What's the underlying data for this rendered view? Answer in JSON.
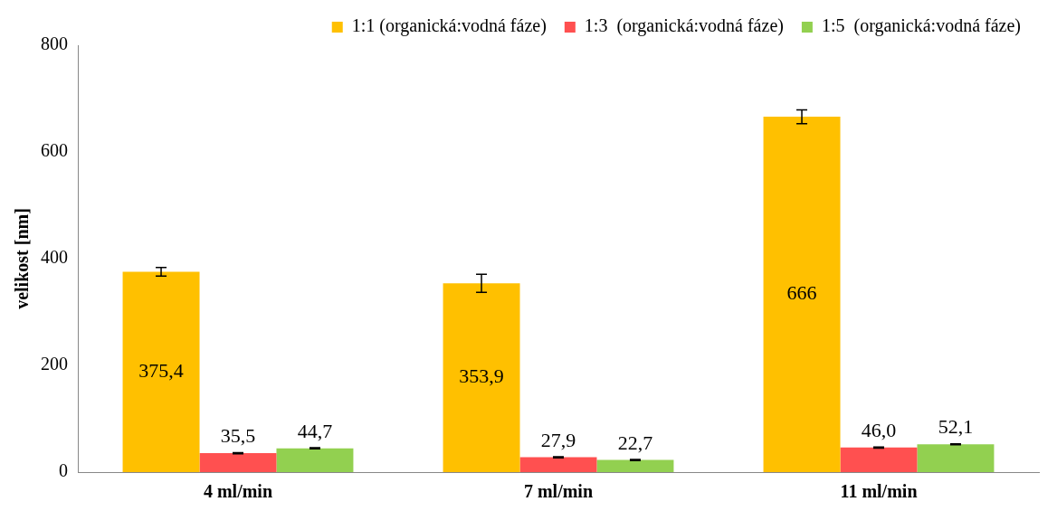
{
  "chart_data": {
    "type": "bar",
    "ylabel": "velikost [nm]",
    "categories": [
      "4 ml/min",
      "7 ml/min",
      "11 ml/min"
    ],
    "series": [
      {
        "name": "1:1 (organická:vodná fáze)",
        "color": "#ffc000",
        "values": [
          375.4,
          353.9,
          666
        ],
        "errors": [
          8,
          17,
          13
        ],
        "value_labels": [
          "375,4",
          "353,9",
          "666"
        ]
      },
      {
        "name": "1:3  (organická:vodná fáze)",
        "color": "#ff5050",
        "values": [
          35.5,
          27.9,
          46.0
        ],
        "errors": [
          1,
          1,
          1
        ],
        "value_labels": [
          "35,5",
          "27,9",
          "46,0"
        ]
      },
      {
        "name": "1:5  (organická:vodná fáze)",
        "color": "#92d050",
        "values": [
          44.7,
          22.7,
          52.1
        ],
        "errors": [
          1,
          1,
          1
        ],
        "value_labels": [
          "44,7",
          "22,7",
          "52,1"
        ]
      }
    ],
    "ylim": [
      0,
      800
    ],
    "yticks": [
      0,
      200,
      400,
      600,
      800
    ],
    "grid": false,
    "legend": "top"
  }
}
